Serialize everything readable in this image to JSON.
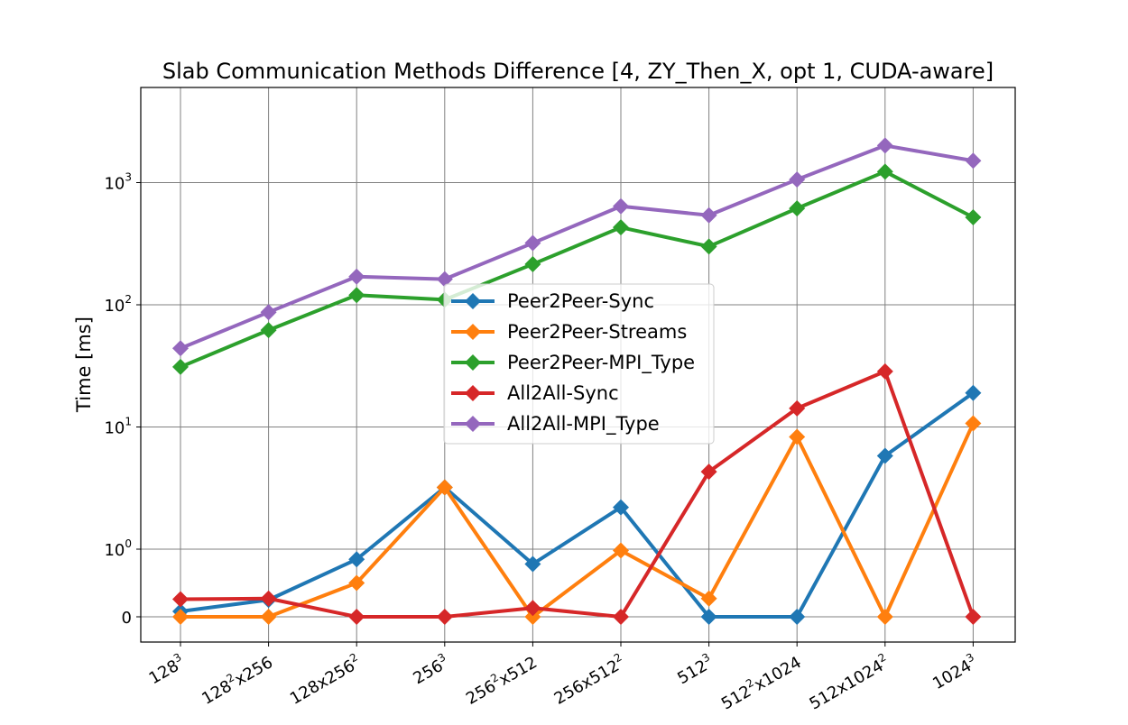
{
  "chart_data": {
    "type": "line",
    "title": "Slab Communication Methods Difference [4, ZY_Then_X, opt 1, CUDA-aware]",
    "xlabel": "",
    "ylabel": "Time [ms]",
    "yscale": "symlog",
    "grid": true,
    "legend_position": "center",
    "categories": [
      {
        "base": "128",
        "sup": "3",
        "rest": "",
        "sup2": ""
      },
      {
        "base": "128",
        "sup": "2",
        "rest": "x256",
        "sup2": ""
      },
      {
        "base": "128x256",
        "sup": "2",
        "rest": "",
        "sup2": ""
      },
      {
        "base": "256",
        "sup": "3",
        "rest": "",
        "sup2": ""
      },
      {
        "base": "256",
        "sup": "2",
        "rest": "x512",
        "sup2": ""
      },
      {
        "base": "256x512",
        "sup": "2",
        "rest": "",
        "sup2": ""
      },
      {
        "base": "512",
        "sup": "3",
        "rest": "",
        "sup2": ""
      },
      {
        "base": "512",
        "sup": "2",
        "rest": "x1024",
        "sup2": ""
      },
      {
        "base": "512x1024",
        "sup": "2",
        "rest": "",
        "sup2": ""
      },
      {
        "base": "1024",
        "sup": "3",
        "rest": "",
        "sup2": ""
      }
    ],
    "y_ticks": [
      {
        "value": 0,
        "base": "0",
        "exp": ""
      },
      {
        "value": 1,
        "base": "10",
        "exp": "0"
      },
      {
        "value": 10,
        "base": "10",
        "exp": "1"
      },
      {
        "value": 100,
        "base": "10",
        "exp": "2"
      },
      {
        "value": 1000,
        "base": "10",
        "exp": "3"
      }
    ],
    "series": [
      {
        "name": "Peer2Peer-Sync",
        "color": "#1f77b4",
        "values": [
          0.08,
          0.25,
          0.85,
          3.2,
          0.78,
          2.2,
          0,
          0,
          5.8,
          19
        ]
      },
      {
        "name": "Peer2Peer-Streams",
        "color": "#ff7f0e",
        "values": [
          0,
          0,
          0.5,
          3.2,
          0,
          0.98,
          0.27,
          8.3,
          0,
          10.7
        ]
      },
      {
        "name": "Peer2Peer-MPI_Type",
        "color": "#2ca02c",
        "values": [
          31,
          62,
          120,
          110,
          215,
          430,
          300,
          615,
          1230,
          520
        ]
      },
      {
        "name": "All2All-Sync",
        "color": "#d62728",
        "values": [
          0.26,
          0.27,
          0,
          0,
          0.13,
          0,
          4.3,
          14.2,
          28.5,
          0
        ]
      },
      {
        "name": "All2All-MPI_Type",
        "color": "#9467bd",
        "values": [
          44,
          87,
          170,
          162,
          320,
          640,
          540,
          1060,
          2010,
          1510
        ]
      }
    ]
  }
}
